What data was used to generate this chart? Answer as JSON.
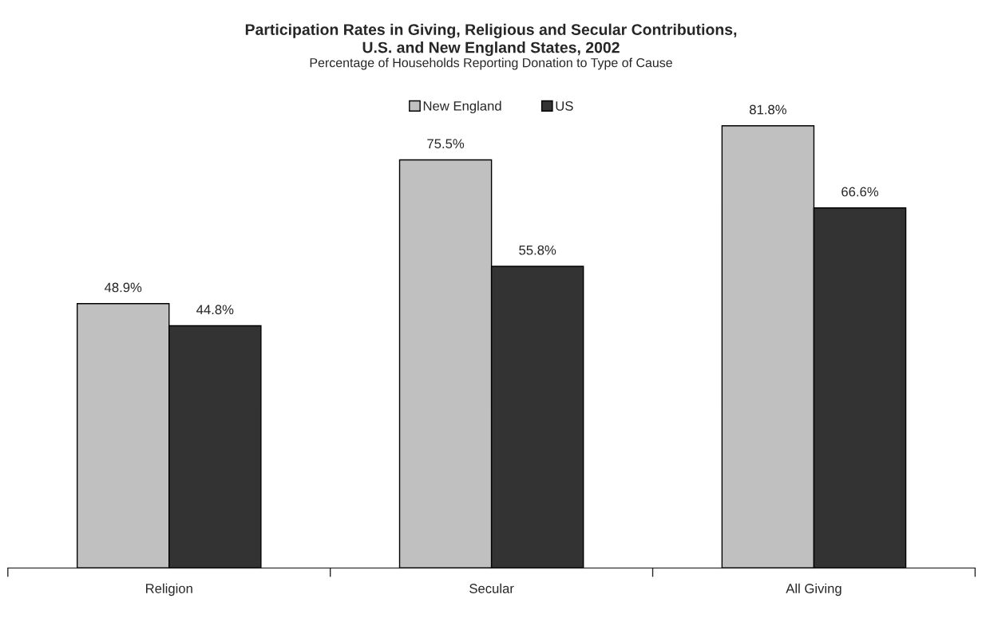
{
  "chart_data": {
    "type": "bar",
    "title": "Participation Rates in Giving, Religious and Secular Contributions,\nU.S. and New England States, 2002",
    "subtitle": "Percentage of Households Reporting Donation to Type of Cause",
    "categories": [
      "Religion",
      "Secular",
      "All Giving"
    ],
    "series": [
      {
        "name": "New England",
        "color": "#c0c0c0",
        "values": [
          48.9,
          75.5,
          81.8
        ],
        "value_labels": [
          "48.9%",
          "75.5%",
          "81.8%"
        ]
      },
      {
        "name": "US",
        "color": "#333333",
        "values": [
          44.8,
          55.8,
          66.6
        ],
        "value_labels": [
          "44.8%",
          "55.8%",
          "66.6%"
        ]
      }
    ],
    "tick_labels": "x",
    "grid": false,
    "legend": "top"
  }
}
